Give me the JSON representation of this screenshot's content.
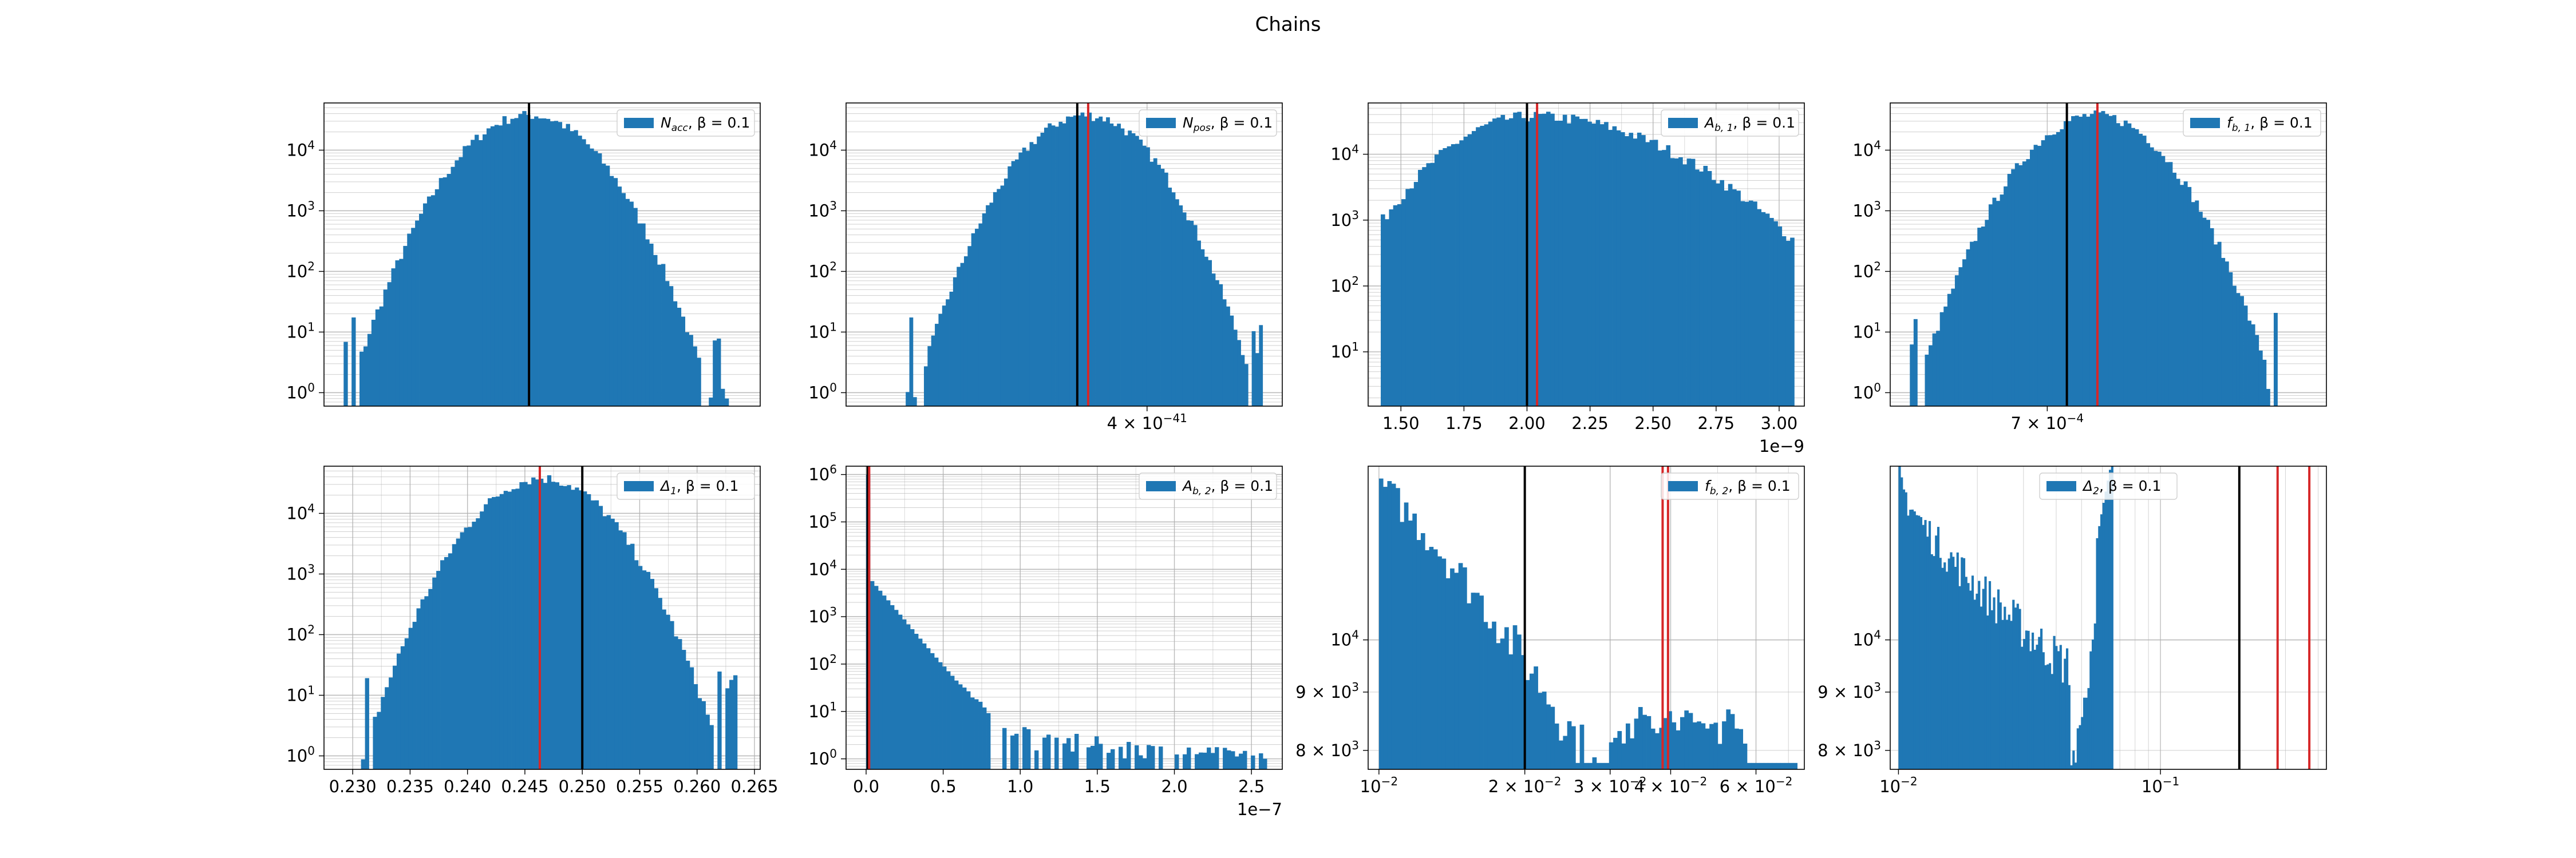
{
  "figure_title": "Chains",
  "colors": {
    "bar": "#1f77b4",
    "true_line": "#000000",
    "est_line": "#d62728",
    "grid": "#b0b0b0"
  },
  "chart_data": [
    {
      "type": "bar",
      "scale": "log-y",
      "title": "",
      "legend": "N_acc, β = 0.1",
      "legend_main": "N",
      "legend_sub": "acc",
      "legend_rest": ", β = 0.1",
      "legend_loc": "upper right",
      "xlim": [
        0.0,
        1.0
      ],
      "ylim": [
        0.6,
        60000
      ],
      "grid": true,
      "x_ticks": [],
      "x_offset": "",
      "y_ticks": [
        {
          "v": 1,
          "e": "0"
        },
        {
          "v": 10,
          "e": "1"
        },
        {
          "v": 100,
          "e": "2"
        },
        {
          "v": 1000,
          "e": "3"
        },
        {
          "v": 10000,
          "e": "4"
        }
      ],
      "bins": {
        "start": 0.045,
        "end": 0.955,
        "n": 100,
        "center": 0.47,
        "sigma": 0.09,
        "peak": 38000,
        "skew": 0.0
      },
      "vlines": [
        {
          "x": 0.47,
          "color": "black"
        }
      ]
    },
    {
      "type": "bar",
      "scale": "log-y",
      "title": "",
      "legend": "N_pos, β = 0.1",
      "legend_main": "N",
      "legend_sub": "pos",
      "legend_rest": ", β = 0.1",
      "legend_loc": "upper right",
      "xlim": [
        0.0,
        1.0
      ],
      "ylim": [
        0.6,
        60000
      ],
      "grid": true,
      "x_ticks": [
        {
          "v": 0.69,
          "label": "4 × 10",
          "exp": "−41"
        }
      ],
      "x_offset": "",
      "y_ticks": [
        {
          "v": 1,
          "e": "0"
        },
        {
          "v": 10,
          "e": "1"
        },
        {
          "v": 100,
          "e": "2"
        },
        {
          "v": 1000,
          "e": "3"
        },
        {
          "v": 10000,
          "e": "4"
        }
      ],
      "bins": {
        "start": 0.12,
        "end": 0.955,
        "n": 100,
        "center": 0.55,
        "sigma": 0.085,
        "peak": 38000,
        "skew": 0.0
      },
      "vlines": [
        {
          "x": 0.53,
          "color": "black"
        },
        {
          "x": 0.555,
          "color": "red"
        }
      ]
    },
    {
      "type": "bar",
      "scale": "log-y",
      "title": "",
      "legend": "A_b,1, β = 0.1",
      "legend_main": "A",
      "legend_sub": "b, 1",
      "legend_rest": ", β = 0.1",
      "legend_loc": "upper right",
      "xlim": [
        1.37,
        3.1
      ],
      "ylim": [
        1.5,
        60000
      ],
      "grid": true,
      "x_ticks": [
        {
          "v": 1.5,
          "label": "1.50"
        },
        {
          "v": 1.75,
          "label": "1.75"
        },
        {
          "v": 2.0,
          "label": "2.00"
        },
        {
          "v": 2.25,
          "label": "2.25"
        },
        {
          "v": 2.5,
          "label": "2.50"
        },
        {
          "v": 2.75,
          "label": "2.75"
        },
        {
          "v": 3.0,
          "label": "3.00"
        }
      ],
      "x_offset": "1e−9",
      "y_ticks": [
        {
          "v": 10,
          "e": "1"
        },
        {
          "v": 100,
          "e": "2"
        },
        {
          "v": 1000,
          "e": "3"
        },
        {
          "v": 10000,
          "e": "4"
        }
      ],
      "bins": {
        "start": 1.42,
        "end": 3.06,
        "n": 100,
        "center": 2.02,
        "sigma": 0.22,
        "peak": 38000,
        "skew": 1.6
      },
      "vlines": [
        {
          "x": 2.0,
          "color": "black"
        },
        {
          "x": 2.04,
          "color": "red"
        }
      ]
    },
    {
      "type": "bar",
      "scale": "log-y",
      "title": "",
      "legend": "f_b,1, β = 0.1",
      "legend_main": "f",
      "legend_sub": "b, 1",
      "legend_rest": ", β = 0.1",
      "legend_loc": "upper right",
      "xlim": [
        0.0,
        1.0
      ],
      "ylim": [
        0.6,
        60000
      ],
      "grid": true,
      "x_ticks": [
        {
          "v": 0.36,
          "label": "7 × 10",
          "exp": "−4"
        }
      ],
      "x_offset": "",
      "y_ticks": [
        {
          "v": 1,
          "e": "0"
        },
        {
          "v": 10,
          "e": "1"
        },
        {
          "v": 100,
          "e": "2"
        },
        {
          "v": 1000,
          "e": "3"
        },
        {
          "v": 10000,
          "e": "4"
        }
      ],
      "bins": {
        "start": 0.045,
        "end": 0.905,
        "n": 100,
        "center": 0.47,
        "sigma": 0.09,
        "peak": 38000,
        "skew": 0.0
      },
      "vlines": [
        {
          "x": 0.405,
          "color": "black"
        },
        {
          "x": 0.475,
          "color": "red"
        }
      ]
    },
    {
      "type": "bar",
      "scale": "log-y",
      "title": "",
      "legend": "Δ_1, β = 0.1",
      "legend_main": "Δ",
      "legend_sub": "1",
      "legend_rest": ", β = 0.1",
      "legend_loc": "upper right",
      "xlim": [
        0.2275,
        0.2655
      ],
      "ylim": [
        0.6,
        60000
      ],
      "grid": true,
      "x_ticks": [
        {
          "v": 0.23,
          "label": "0.230"
        },
        {
          "v": 0.235,
          "label": "0.235"
        },
        {
          "v": 0.24,
          "label": "0.240"
        },
        {
          "v": 0.245,
          "label": "0.245"
        },
        {
          "v": 0.25,
          "label": "0.250"
        },
        {
          "v": 0.255,
          "label": "0.255"
        },
        {
          "v": 0.26,
          "label": "0.260"
        },
        {
          "v": 0.265,
          "label": "0.265"
        }
      ],
      "x_offset": "",
      "y_ticks": [
        {
          "v": 1,
          "e": "0"
        },
        {
          "v": 10,
          "e": "1"
        },
        {
          "v": 100,
          "e": "2"
        },
        {
          "v": 1000,
          "e": "3"
        },
        {
          "v": 10000,
          "e": "4"
        }
      ],
      "bins": {
        "start": 0.229,
        "end": 0.2635,
        "n": 100,
        "center": 0.2465,
        "sigma": 0.0034,
        "peak": 38000,
        "skew": 0.0
      },
      "vlines": [
        {
          "x": 0.2463,
          "color": "red"
        },
        {
          "x": 0.25,
          "color": "black"
        }
      ]
    },
    {
      "type": "bar",
      "scale": "log-y",
      "title": "",
      "legend": "A_b,2, β = 0.1",
      "legend_main": "A",
      "legend_sub": "b, 2",
      "legend_rest": ", β = 0.1",
      "legend_loc": "upper right",
      "xlim": [
        -0.13,
        2.7
      ],
      "ylim": [
        0.6,
        1500000
      ],
      "grid": true,
      "x_ticks": [
        {
          "v": 0.0,
          "label": "0.0"
        },
        {
          "v": 0.5,
          "label": "0.5"
        },
        {
          "v": 1.0,
          "label": "1.0"
        },
        {
          "v": 1.5,
          "label": "1.5"
        },
        {
          "v": 2.0,
          "label": "2.0"
        },
        {
          "v": 2.5,
          "label": "2.5"
        }
      ],
      "x_offset": "1e−7",
      "y_ticks": [
        {
          "v": 1,
          "e": "0"
        },
        {
          "v": 10,
          "e": "1"
        },
        {
          "v": 100,
          "e": "2"
        },
        {
          "v": 1000,
          "e": "3"
        },
        {
          "v": 10000,
          "e": "4"
        },
        {
          "v": 100000,
          "e": "5"
        },
        {
          "v": 1000000,
          "e": "6"
        }
      ],
      "bins": {
        "start": 0.0,
        "end": 2.6,
        "n": 100,
        "mode": "decay"
      },
      "vlines": [
        {
          "x": 0.01,
          "color": "black"
        },
        {
          "x": 0.02,
          "color": "red"
        }
      ]
    },
    {
      "type": "bar",
      "scale": "log-log",
      "title": "",
      "legend": "f_b,2, β = 0.1",
      "legend_main": "f",
      "legend_sub": "b, 2",
      "legend_rest": ", β = 0.1",
      "legend_loc": "upper right",
      "xlim": [
        0.0095,
        0.0755
      ],
      "ylim": [
        7700,
        14200
      ],
      "grid": true,
      "x_ticks": [
        {
          "v": 0.01,
          "label": "10",
          "exp": "−2"
        },
        {
          "v": 0.02,
          "label": "2 × 10",
          "exp": "−2"
        },
        {
          "v": 0.03,
          "label": "3 × 10",
          "exp": "−2"
        },
        {
          "v": 0.04,
          "label": "4 × 10",
          "exp": "−2"
        },
        {
          "v": 0.06,
          "label": "6 × 10",
          "exp": "−2"
        }
      ],
      "x_offset": "",
      "y_ticks": [
        {
          "v": 8000,
          "label": "8 × 10",
          "exp": "3"
        },
        {
          "v": 9000,
          "label": "9 × 10",
          "exp": "3"
        },
        {
          "v": 10000,
          "label": "10",
          "exp": "4"
        }
      ],
      "bins": {
        "start": 0.01,
        "end": 0.073,
        "n": 100,
        "mode": "ushape"
      },
      "vlines": [
        {
          "x": 0.02,
          "color": "black"
        },
        {
          "x": 0.0385,
          "color": "red"
        },
        {
          "x": 0.0395,
          "color": "red"
        }
      ]
    },
    {
      "type": "bar",
      "scale": "log-log",
      "title": "",
      "legend": "Δ_2, β = 0.1",
      "legend_main": "Δ",
      "legend_sub": "2",
      "legend_rest": ", β = 0.1",
      "legend_loc": "upper center",
      "xlim": [
        0.0093,
        0.43
      ],
      "ylim": [
        7700,
        14200
      ],
      "grid": true,
      "x_ticks": [
        {
          "v": 0.01,
          "label": "10",
          "exp": "−2"
        },
        {
          "v": 0.1,
          "label": "10",
          "exp": "−1"
        }
      ],
      "x_offset": "",
      "y_ticks": [
        {
          "v": 8000,
          "label": "8 × 10",
          "exp": "3"
        },
        {
          "v": 9000,
          "label": "9 × 10",
          "exp": "3"
        },
        {
          "v": 10000,
          "label": "10",
          "exp": "4"
        }
      ],
      "bins": {
        "start": 0.01,
        "end": 0.066,
        "n": 100,
        "mode": "decay2"
      },
      "vlines": [
        {
          "x": 0.2,
          "color": "black"
        },
        {
          "x": 0.28,
          "color": "red"
        },
        {
          "x": 0.37,
          "color": "red"
        }
      ]
    }
  ]
}
